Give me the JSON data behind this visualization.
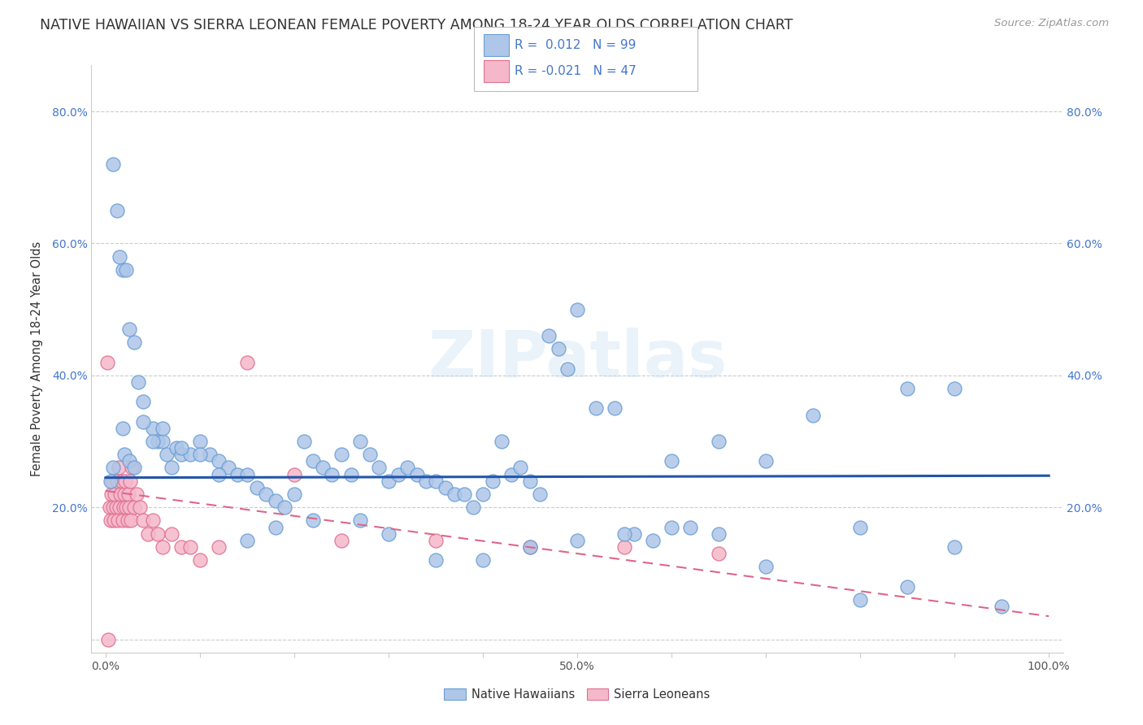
{
  "title": "NATIVE HAWAIIAN VS SIERRA LEONEAN FEMALE POVERTY AMONG 18-24 YEAR OLDS CORRELATION CHART",
  "source": "Source: ZipAtlas.com",
  "ylabel": "Female Poverty Among 18-24 Year Olds",
  "xlim": [
    -0.015,
    1.015
  ],
  "ylim": [
    -0.02,
    0.87
  ],
  "xtick_positions": [
    0.0,
    0.1,
    0.2,
    0.3,
    0.4,
    0.5,
    0.6,
    0.7,
    0.8,
    0.9,
    1.0
  ],
  "xticklabels": [
    "0.0%",
    "",
    "",
    "",
    "",
    "50.0%",
    "",
    "",
    "",
    "",
    "100.0%"
  ],
  "ytick_positions": [
    0.0,
    0.2,
    0.4,
    0.6,
    0.8
  ],
  "yticklabels": [
    "",
    "20.0%",
    "40.0%",
    "60.0%",
    "80.0%"
  ],
  "hawaiian_color_fill": "#aec6e8",
  "hawaiian_color_edge": "#6b9fd4",
  "sierra_color_fill": "#f5b8cb",
  "sierra_color_edge": "#e07090",
  "hawaiian_line_color": "#2255aa",
  "sierra_line_color": "#dd6688",
  "tick_color_blue": "#4477cc",
  "background_color": "#ffffff",
  "grid_color": "#cccccc",
  "title_fontsize": 12.5,
  "source_fontsize": 9.5,
  "axis_label_fontsize": 10.5,
  "tick_fontsize": 10,
  "watermark": "ZIPatlas",
  "legend_label_hawaiian": "R =  0.012   N = 99",
  "legend_label_sierra": "R = -0.021   N = 47",
  "bottom_legend_hawaiian": "Native Hawaiians",
  "bottom_legend_sierra": "Sierra Leoneans",
  "hawaiian_trend_y0": 0.245,
  "hawaiian_trend_y1": 0.248,
  "sierra_trend_y0": 0.225,
  "sierra_trend_y1": 0.035,
  "hawaiian_x": [
    0.008,
    0.012,
    0.018,
    0.015,
    0.022,
    0.025,
    0.03,
    0.035,
    0.04,
    0.05,
    0.055,
    0.06,
    0.065,
    0.07,
    0.075,
    0.08,
    0.09,
    0.1,
    0.11,
    0.12,
    0.13,
    0.14,
    0.15,
    0.16,
    0.17,
    0.18,
    0.19,
    0.2,
    0.21,
    0.22,
    0.23,
    0.24,
    0.25,
    0.26,
    0.27,
    0.28,
    0.29,
    0.3,
    0.31,
    0.32,
    0.33,
    0.34,
    0.35,
    0.36,
    0.37,
    0.38,
    0.39,
    0.4,
    0.41,
    0.42,
    0.43,
    0.44,
    0.45,
    0.46,
    0.47,
    0.48,
    0.49,
    0.5,
    0.52,
    0.54,
    0.56,
    0.58,
    0.6,
    0.62,
    0.65,
    0.7,
    0.75,
    0.8,
    0.85,
    0.9,
    0.008,
    0.018,
    0.02,
    0.025,
    0.03,
    0.04,
    0.05,
    0.06,
    0.08,
    0.1,
    0.12,
    0.15,
    0.18,
    0.22,
    0.27,
    0.3,
    0.35,
    0.4,
    0.45,
    0.5,
    0.55,
    0.6,
    0.65,
    0.7,
    0.8,
    0.85,
    0.9,
    0.95,
    0.005
  ],
  "hawaiian_y": [
    0.72,
    0.65,
    0.56,
    0.58,
    0.56,
    0.47,
    0.45,
    0.39,
    0.36,
    0.32,
    0.3,
    0.3,
    0.28,
    0.26,
    0.29,
    0.28,
    0.28,
    0.3,
    0.28,
    0.27,
    0.26,
    0.25,
    0.25,
    0.23,
    0.22,
    0.21,
    0.2,
    0.22,
    0.3,
    0.27,
    0.26,
    0.25,
    0.28,
    0.25,
    0.3,
    0.28,
    0.26,
    0.24,
    0.25,
    0.26,
    0.25,
    0.24,
    0.24,
    0.23,
    0.22,
    0.22,
    0.2,
    0.22,
    0.24,
    0.3,
    0.25,
    0.26,
    0.24,
    0.22,
    0.46,
    0.44,
    0.41,
    0.5,
    0.35,
    0.35,
    0.16,
    0.15,
    0.27,
    0.17,
    0.3,
    0.27,
    0.34,
    0.17,
    0.38,
    0.38,
    0.26,
    0.32,
    0.28,
    0.27,
    0.26,
    0.33,
    0.3,
    0.32,
    0.29,
    0.28,
    0.25,
    0.15,
    0.17,
    0.18,
    0.18,
    0.16,
    0.12,
    0.12,
    0.14,
    0.15,
    0.16,
    0.17,
    0.16,
    0.11,
    0.06,
    0.08,
    0.14,
    0.05,
    0.24
  ],
  "sierra_x": [
    0.002,
    0.003,
    0.004,
    0.005,
    0.006,
    0.007,
    0.008,
    0.009,
    0.01,
    0.011,
    0.012,
    0.013,
    0.014,
    0.015,
    0.016,
    0.017,
    0.018,
    0.019,
    0.02,
    0.021,
    0.022,
    0.023,
    0.024,
    0.025,
    0.026,
    0.027,
    0.028,
    0.03,
    0.033,
    0.036,
    0.04,
    0.045,
    0.05,
    0.055,
    0.06,
    0.07,
    0.08,
    0.09,
    0.1,
    0.12,
    0.15,
    0.2,
    0.25,
    0.35,
    0.45,
    0.55,
    0.65
  ],
  "sierra_y": [
    0.42,
    0.0,
    0.2,
    0.18,
    0.22,
    0.24,
    0.2,
    0.18,
    0.22,
    0.2,
    0.24,
    0.18,
    0.26,
    0.2,
    0.22,
    0.24,
    0.18,
    0.2,
    0.22,
    0.24,
    0.2,
    0.18,
    0.22,
    0.2,
    0.24,
    0.18,
    0.26,
    0.2,
    0.22,
    0.2,
    0.18,
    0.16,
    0.18,
    0.16,
    0.14,
    0.16,
    0.14,
    0.14,
    0.12,
    0.14,
    0.42,
    0.25,
    0.15,
    0.15,
    0.14,
    0.14,
    0.13
  ]
}
